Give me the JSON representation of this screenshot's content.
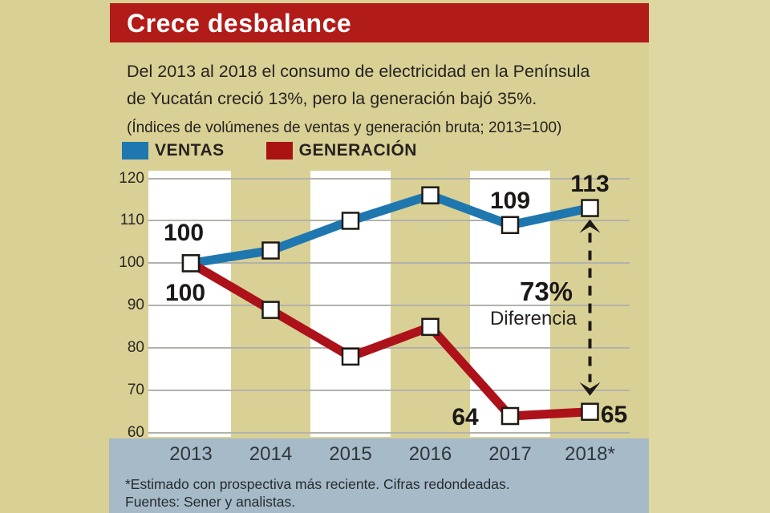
{
  "header": {
    "title": "Crece desbalance",
    "subtitle_lines": [
      "Del 2013 al 2018 el consumo de electricidad en la Península",
      "de Yucatán creció 13%, pero la generación bajó 35%."
    ],
    "note": "(Índices de volúmenes de ventas y generación bruta; 2013=100)"
  },
  "legend": {
    "items": [
      {
        "label": "VENTAS",
        "color": "#1f77b0"
      },
      {
        "label": "GENERACIÓN",
        "color": "#a91413"
      }
    ]
  },
  "chart_data": {
    "type": "line",
    "categories": [
      "2013",
      "2014",
      "2015",
      "2016",
      "2017",
      "2018*"
    ],
    "series": [
      {
        "name": "VENTAS",
        "color": "#1f77b0",
        "values": [
          100,
          103,
          110,
          116,
          109,
          113
        ]
      },
      {
        "name": "GENERACIÓN",
        "color": "#ad1119",
        "values": [
          100,
          89,
          78,
          85,
          64,
          65
        ]
      }
    ],
    "ylim": [
      60,
      120
    ],
    "yticks": [
      120,
      110,
      100,
      90,
      80,
      70,
      60
    ],
    "grid": "horizontal",
    "white_band_columns": [
      0,
      2,
      4
    ],
    "marker": "open-square",
    "point_labels": [
      {
        "series": "VENTAS",
        "index": 0,
        "text": "100",
        "position": "above-left"
      },
      {
        "series": "GENERACIÓN",
        "index": 0,
        "text": "100",
        "position": "below-left"
      },
      {
        "series": "VENTAS",
        "index": 4,
        "text": "109",
        "position": "above"
      },
      {
        "series": "VENTAS",
        "index": 5,
        "text": "113",
        "position": "above"
      },
      {
        "series": "GENERACIÓN",
        "index": 4,
        "text": "64",
        "position": "left"
      },
      {
        "series": "GENERACIÓN",
        "index": 5,
        "text": "65",
        "position": "right"
      }
    ]
  },
  "annotation": {
    "value": "73%",
    "label": "Diferencia",
    "at_category": "2018*"
  },
  "footer": {
    "lines": [
      "*Estimado con prospectiva más reciente. Cifras redondeadas.",
      "Fuentes: Sener y analistas."
    ]
  },
  "colors": {
    "title_bar_red": "#b11b18",
    "ventas_blue": "#1f77b0",
    "generacion_red": "#ad1119",
    "page_tan": "#d9d095",
    "outer_tan": "#ded7a2",
    "band_white": "#ffffff",
    "axis_band_blue": "#a6bac8",
    "gridline_gray": "#b2b2ac",
    "text_dark": "#262220"
  }
}
